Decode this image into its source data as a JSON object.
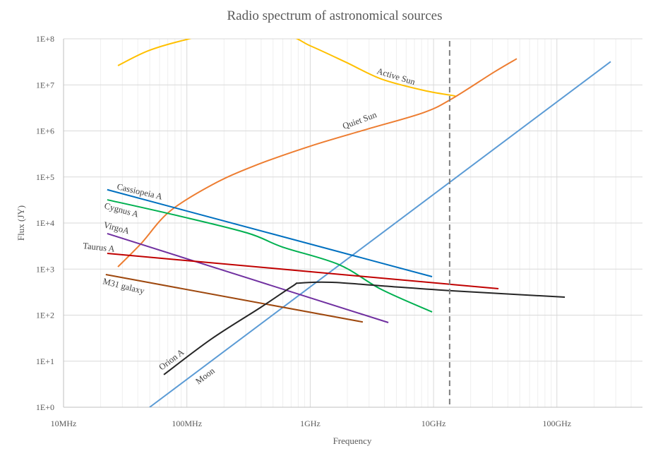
{
  "chart_data": {
    "type": "line",
    "title": "Radio spectrum of astronomical sources",
    "xlabel": "Frequency",
    "ylabel": "Flux (JY)",
    "x_units": "MHz",
    "x_scale": "log",
    "y_scale": "log",
    "xlim": [
      10,
      500000
    ],
    "ylim": [
      1,
      100000000
    ],
    "x_ticks": [
      {
        "value": 10,
        "label": "10MHz"
      },
      {
        "value": 100,
        "label": "100MHz"
      },
      {
        "value": 1000,
        "label": "1GHz"
      },
      {
        "value": 10000,
        "label": "10GHz"
      },
      {
        "value": 100000,
        "label": "100GHz"
      }
    ],
    "y_ticks": [
      {
        "value": 1,
        "label": "1E+0"
      },
      {
        "value": 10,
        "label": "1E+1"
      },
      {
        "value": 100,
        "label": "1E+2"
      },
      {
        "value": 1000,
        "label": "1E+3"
      },
      {
        "value": 10000,
        "label": "1E+4"
      },
      {
        "value": 100000,
        "label": "1E+5"
      },
      {
        "value": 1000000,
        "label": "1E+6"
      },
      {
        "value": 10000000,
        "label": "1E+7"
      },
      {
        "value": 100000000,
        "label": "1E+8"
      }
    ],
    "grid": true,
    "legend": "inline labels",
    "reference_line": {
      "x": 13500,
      "style": "dashed",
      "color": "#7f7f7f"
    },
    "series": [
      {
        "name": "Active Sun",
        "color": "#ffc000",
        "x": [
          27.6,
          48.6,
          94,
          159,
          596,
          1007,
          1950,
          3770,
          8300,
          14100,
          15000
        ],
        "y": [
          26200000,
          55000000,
          93000000,
          120000000,
          120000000,
          70000000,
          31000000,
          13400000,
          7600000,
          5900000,
          5700000
        ]
      },
      {
        "name": "Quiet Sun",
        "color": "#ed7d31",
        "x": [
          27.6,
          42.6,
          72,
          159,
          351,
          1007,
          2890,
          8300,
          14100,
          31000,
          47300
        ],
        "y": [
          1120,
          3600,
          17600,
          67000,
          174000,
          470000,
          1090000,
          2500000,
          5000000,
          19000000,
          37000000
        ]
      },
      {
        "name": "Moon",
        "color": "#5b9bd5",
        "x": [
          49.9,
          273000
        ],
        "y": [
          1,
          32000000
        ]
      },
      {
        "name": "Cassiopeia A",
        "color": "#0070c0",
        "x": [
          22.6,
          9730
        ],
        "y": [
          53000,
          684
        ]
      },
      {
        "name": "Cygnus A",
        "color": "#00b050",
        "x": [
          22.6,
          82,
          308,
          596,
          1710,
          3770,
          9730
        ],
        "y": [
          32000,
          14700,
          6100,
          3010,
          1250,
          362,
          117
        ]
      },
      {
        "name": "VirgoA",
        "color": "#7030a0",
        "x": [
          22.6,
          4300
        ],
        "y": [
          5900,
          69
        ]
      },
      {
        "name": "Taurus A",
        "color": "#c00000",
        "x": [
          22.6,
          33600
        ],
        "y": [
          2190,
          376
        ]
      },
      {
        "name": "M31 galaxy",
        "color": "#9e480e",
        "x": [
          22,
          2670
        ],
        "y": [
          760,
          71
        ]
      },
      {
        "name": "Orion A",
        "color": "#262626",
        "x": [
          65,
          159,
          401,
          725,
          828,
          1500,
          3770,
          14100,
          116000
        ],
        "y": [
          5.1,
          30.7,
          150,
          433,
          498,
          516,
          433,
          338,
          246
        ]
      }
    ]
  }
}
